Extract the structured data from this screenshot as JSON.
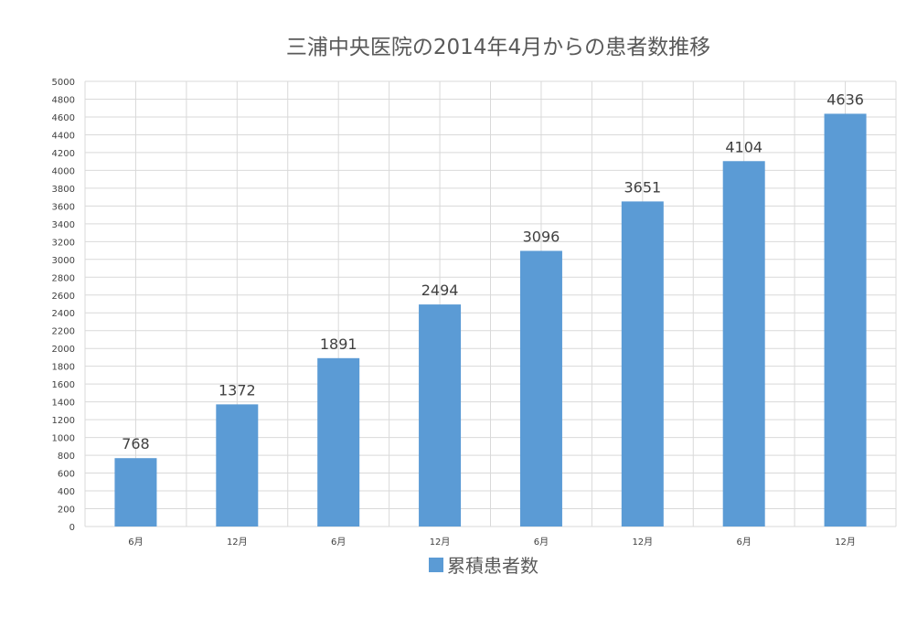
{
  "chart_data": {
    "type": "bar",
    "title": "三浦中央医院の2014年4月からの患者数推移",
    "categories": [
      "6月",
      "12月",
      "6月",
      "12月",
      "6月",
      "12月",
      "6月",
      "12月"
    ],
    "series": [
      {
        "name": "累積患者数",
        "values": [
          768,
          1372,
          1891,
          2494,
          3096,
          3651,
          4104,
          4636
        ]
      }
    ],
    "ylim": [
      0,
      5000
    ],
    "yticks": [
      0,
      200,
      400,
      600,
      800,
      1000,
      1200,
      1400,
      1600,
      1800,
      2000,
      2200,
      2400,
      2600,
      2800,
      3000,
      3200,
      3400,
      3600,
      3800,
      4000,
      4200,
      4400,
      4600,
      4800,
      5000
    ],
    "grid": true,
    "legend_position": "bottom",
    "data_labels": true,
    "colors": {
      "bar": "#5b9bd5",
      "grid": "#d9d9d9",
      "text": "#404040"
    }
  }
}
